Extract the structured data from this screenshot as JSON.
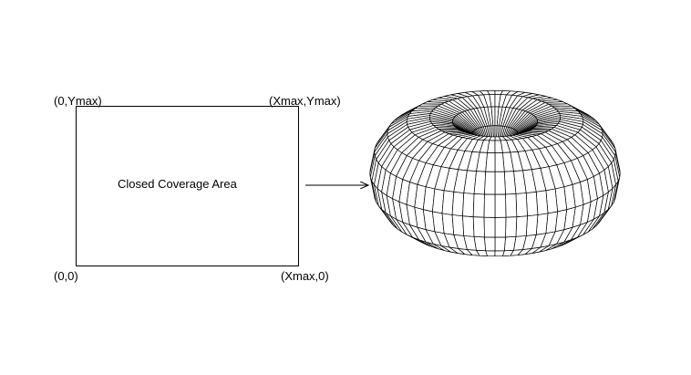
{
  "labels": {
    "top_left": "(0,Ymax)",
    "top_right": "(Xmax,Ymax)",
    "bottom_left": "(0,0)",
    "bottom_right": "(Xmax,0)",
    "area": "Closed Coverage Area"
  },
  "colors": {
    "ink": "#000000",
    "background": "#ffffff"
  },
  "torus": {
    "segments": 72,
    "tube_rings": 16
  }
}
